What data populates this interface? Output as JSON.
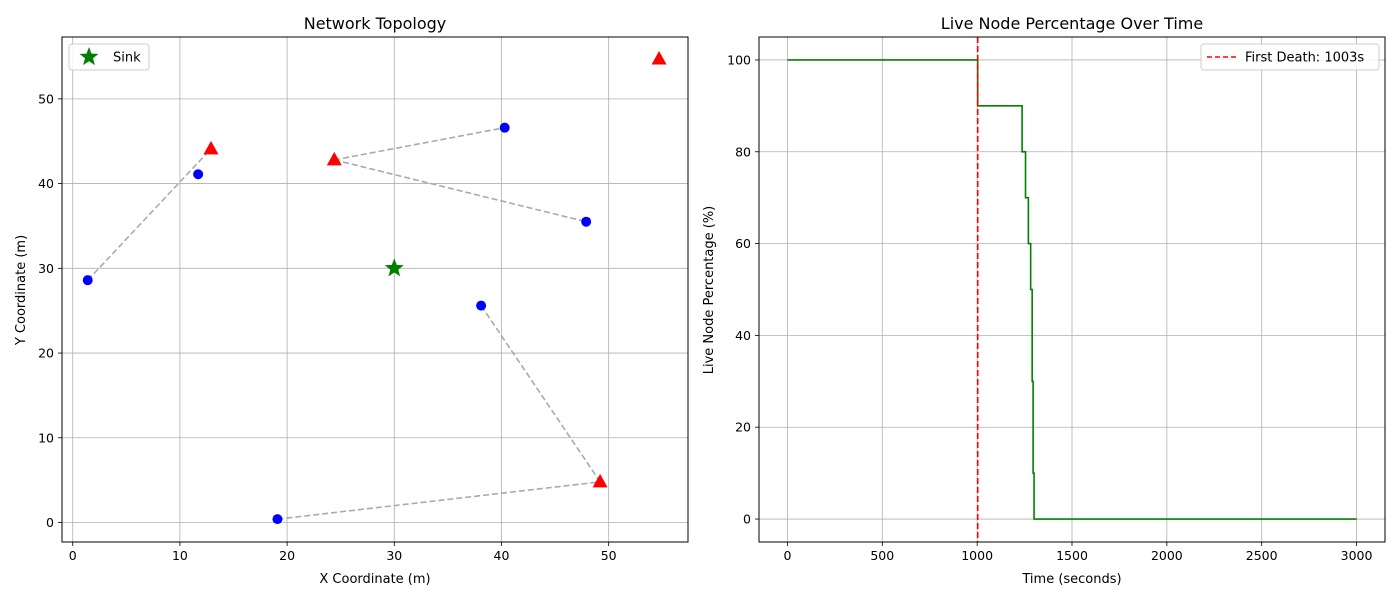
{
  "chart_data": [
    {
      "type": "scatter",
      "title": "Network Topology",
      "xlabel": "X Coordinate (m)",
      "ylabel": "Y Coordinate (m)",
      "xlim": [
        -1,
        57.4
      ],
      "ylim": [
        -2.3,
        57.3
      ],
      "xticks": [
        0,
        10,
        20,
        30,
        40,
        50
      ],
      "yticks": [
        0,
        10,
        20,
        30,
        40,
        50
      ],
      "grid": true,
      "legend_position": "top-left",
      "legend": [
        {
          "label": "Sink",
          "marker": "star",
          "color": "#008000"
        }
      ],
      "sink": {
        "x": 30.0,
        "y": 30.0,
        "color": "#008000"
      },
      "normal_nodes": {
        "color": "#0000ff",
        "points": [
          {
            "x": 1.4,
            "y": 28.6
          },
          {
            "x": 11.7,
            "y": 41.1
          },
          {
            "x": 40.3,
            "y": 46.6
          },
          {
            "x": 47.9,
            "y": 35.5
          },
          {
            "x": 38.1,
            "y": 25.6
          },
          {
            "x": 19.1,
            "y": 0.4
          }
        ]
      },
      "cluster_heads": {
        "color": "#ff0000",
        "points": [
          {
            "x": 12.9,
            "y": 44.1
          },
          {
            "x": 24.4,
            "y": 42.8
          },
          {
            "x": 49.2,
            "y": 4.8
          },
          {
            "x": 54.7,
            "y": 54.7
          }
        ]
      },
      "links": {
        "color": "#aaaaaa",
        "segments": [
          [
            {
              "x": 1.4,
              "y": 28.6
            },
            {
              "x": 12.9,
              "y": 44.1
            }
          ],
          [
            {
              "x": 24.4,
              "y": 42.8
            },
            {
              "x": 40.3,
              "y": 46.6
            }
          ],
          [
            {
              "x": 24.4,
              "y": 42.8
            },
            {
              "x": 47.9,
              "y": 35.5
            }
          ],
          [
            {
              "x": 38.1,
              "y": 25.6
            },
            {
              "x": 49.2,
              "y": 4.8
            }
          ],
          [
            {
              "x": 19.1,
              "y": 0.4
            },
            {
              "x": 49.2,
              "y": 4.8
            }
          ]
        ]
      }
    },
    {
      "type": "line",
      "title": "Live Node Percentage Over Time",
      "xlabel": "Time (seconds)",
      "ylabel": "Live Node Percentage (%)",
      "xlim": [
        -150,
        3150
      ],
      "ylim": [
        -5,
        105
      ],
      "xticks": [
        0,
        500,
        1000,
        1500,
        2000,
        2500,
        3000
      ],
      "yticks": [
        0,
        20,
        40,
        60,
        80,
        100
      ],
      "grid": true,
      "legend_position": "top-right",
      "legend": [
        {
          "label": "First Death: 1003s",
          "style": "dashed",
          "color": "#ff0000"
        }
      ],
      "series": [
        {
          "color": "#008000",
          "points": [
            [
              0,
              100
            ],
            [
              1003,
              100
            ],
            [
              1003,
              90
            ],
            [
              1237,
              90
            ],
            [
              1237,
              80
            ],
            [
              1255,
              80
            ],
            [
              1255,
              70
            ],
            [
              1270,
              70
            ],
            [
              1270,
              60
            ],
            [
              1282,
              60
            ],
            [
              1282,
              50
            ],
            [
              1290,
              50
            ],
            [
              1290,
              30
            ],
            [
              1295,
              30
            ],
            [
              1295,
              10
            ],
            [
              1300,
              10
            ],
            [
              1300,
              0
            ],
            [
              3000,
              0
            ]
          ]
        }
      ],
      "first_death": {
        "x": 1003,
        "color": "#ff0000"
      }
    }
  ]
}
